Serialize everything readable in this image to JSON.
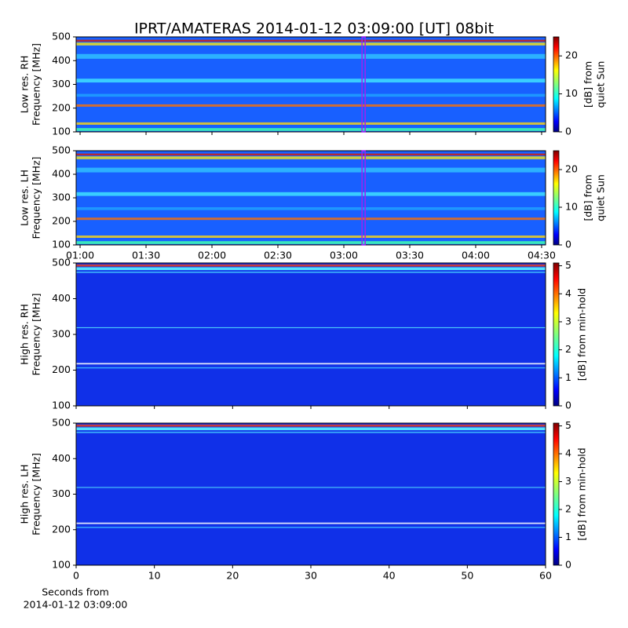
{
  "title": "IPRT/AMATERAS 2014-01-12 03:09:00 [UT]   08bit",
  "chart_data": [
    {
      "type": "spectrogram",
      "ylabel": [
        "Low res. RH",
        "Frequency [MHz]"
      ],
      "ylim": [
        100,
        500
      ],
      "yticks": [
        100,
        200,
        300,
        400,
        500
      ],
      "xlim": [
        0.97,
        4.53
      ],
      "xticks": [
        1,
        1.5,
        2,
        2.5,
        3,
        3.5,
        4,
        4.5
      ],
      "xtick_labels": false,
      "marker_x": 3.15,
      "marker_color": "#a020f0",
      "clim": [
        0,
        25
      ],
      "cticks": [
        0,
        10,
        20
      ],
      "clabel": [
        "[dB] from",
        "quiet Sun"
      ]
    },
    {
      "type": "spectrogram",
      "ylabel": [
        "Low res. LH",
        "Frequency [MHz]"
      ],
      "ylim": [
        100,
        500
      ],
      "yticks": [
        100,
        200,
        300,
        400,
        500
      ],
      "xlim": [
        0.97,
        4.53
      ],
      "xticks": [
        {
          "value": 1,
          "label": "01:00"
        },
        {
          "value": 1.5,
          "label": "01:30"
        },
        {
          "value": 2,
          "label": "02:00"
        },
        {
          "value": 2.5,
          "label": "02:30"
        },
        {
          "value": 3,
          "label": "03:00"
        },
        {
          "value": 3.5,
          "label": "03:30"
        },
        {
          "value": 4,
          "label": "04:00"
        },
        {
          "value": 4.5,
          "label": "04:30"
        }
      ],
      "xtick_labels": true,
      "marker_x": 3.15,
      "marker_color": "#a020f0",
      "clim": [
        0,
        25
      ],
      "cticks": [
        0,
        10,
        20
      ],
      "clabel": [
        "[dB] from",
        "quiet Sun"
      ]
    },
    {
      "type": "spectrogram",
      "ylabel": [
        "High res. RH",
        "Frequency [MHz]"
      ],
      "ylim": [
        100,
        500
      ],
      "yticks": [
        100,
        200,
        300,
        400,
        500
      ],
      "xlim": [
        0,
        60
      ],
      "xticks": [
        0,
        10,
        20,
        30,
        40,
        50,
        60
      ],
      "xtick_labels": false,
      "clim": [
        0,
        5.1
      ],
      "cticks": [
        0,
        1,
        2,
        3,
        4,
        5
      ],
      "clabel": [
        "[dB] from min-hold"
      ]
    },
    {
      "type": "spectrogram",
      "ylabel": [
        "High res. LH",
        "Frequency [MHz]"
      ],
      "ylim": [
        100,
        500
      ],
      "yticks": [
        100,
        200,
        300,
        400,
        500
      ],
      "xlim": [
        0,
        60
      ],
      "xticks": [
        0,
        10,
        20,
        30,
        40,
        50,
        60
      ],
      "xtick_labels": true,
      "xlabel": [
        "Seconds from",
        "2014-01-12 03:09:00"
      ],
      "clim": [
        0,
        5.1
      ],
      "cticks": [
        0,
        1,
        2,
        3,
        4,
        5
      ],
      "clabel": [
        "[dB] from min-hold"
      ]
    }
  ]
}
